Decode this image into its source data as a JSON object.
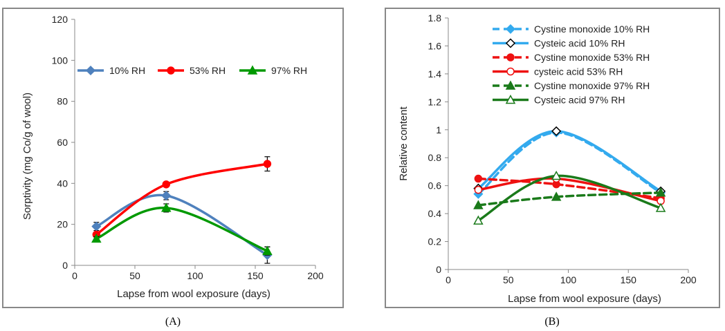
{
  "panel_labels": [
    "(A)",
    "(B)"
  ],
  "chart_data": [
    {
      "type": "line",
      "panel": "A",
      "xlabel": "Lapse from wool exposure (days)",
      "ylabel": "Sorptivity (mg Co/g of wool)",
      "xlim": [
        0,
        200
      ],
      "ylim": [
        0,
        120
      ],
      "x_ticks": [
        0,
        50,
        100,
        150,
        200
      ],
      "y_ticks": [
        0,
        20,
        40,
        60,
        80,
        100,
        120
      ],
      "legend_position": "top",
      "series": [
        {
          "name": "10% RH",
          "color": "#4f81bd",
          "marker": "diamond",
          "dashed": false,
          "x": [
            18,
            76,
            160
          ],
          "y": [
            19,
            34,
            5
          ],
          "err": [
            2,
            2,
            4
          ]
        },
        {
          "name": "53% RH",
          "color": "#ff0000",
          "marker": "circle",
          "dashed": false,
          "x": [
            18,
            76,
            160
          ],
          "y": [
            15,
            39.5,
            49.5
          ],
          "err": [
            1,
            1,
            3.5
          ]
        },
        {
          "name": "97% RH",
          "color": "#009900",
          "marker": "triangle",
          "dashed": false,
          "x": [
            18,
            76,
            160
          ],
          "y": [
            13,
            28,
            7
          ],
          "err": [
            1,
            2,
            2
          ]
        }
      ]
    },
    {
      "type": "line",
      "panel": "B",
      "xlabel": "Lapse from wool exposure (days)",
      "ylabel": "Relative content",
      "xlim": [
        0,
        200
      ],
      "ylim": [
        0,
        1.8
      ],
      "x_ticks": [
        0,
        50,
        100,
        150,
        200
      ],
      "y_ticks": [
        "0",
        "0.2",
        "0.4",
        "0.6",
        "0.8",
        "1",
        "1.2",
        "1.4",
        "1.6",
        "1.8"
      ],
      "legend_position": "top-right",
      "series": [
        {
          "name": "Cystine monoxide 10% RH",
          "color": "#33aaee",
          "marker": "diamond-filled",
          "dashed": true,
          "x": [
            25,
            90,
            177
          ],
          "y": [
            0.54,
            0.98,
            0.55
          ]
        },
        {
          "name": "Cysteic acid 10% RH",
          "color": "#33aaee",
          "marker": "diamond-open",
          "dashed": false,
          "x": [
            25,
            90,
            177
          ],
          "y": [
            0.58,
            0.99,
            0.56
          ]
        },
        {
          "name": "Cystine monoxide 53% RH",
          "color": "#ee1111",
          "marker": "circle-filled",
          "dashed": true,
          "x": [
            25,
            90,
            177
          ],
          "y": [
            0.65,
            0.61,
            0.51
          ]
        },
        {
          "name": "cysteic acid 53% RH",
          "color": "#ee1111",
          "marker": "circle-open",
          "dashed": false,
          "x": [
            25,
            90,
            177
          ],
          "y": [
            0.57,
            0.65,
            0.49
          ]
        },
        {
          "name": "Cystine monoxide 97% RH",
          "color": "#1a7a1a",
          "marker": "triangle-filled",
          "dashed": true,
          "x": [
            25,
            90,
            177
          ],
          "y": [
            0.46,
            0.52,
            0.55
          ]
        },
        {
          "name": "Cysteic acid 97% RH",
          "color": "#1a7a1a",
          "marker": "triangle-open",
          "dashed": false,
          "x": [
            25,
            90,
            177
          ],
          "y": [
            0.35,
            0.67,
            0.44
          ]
        }
      ]
    }
  ]
}
